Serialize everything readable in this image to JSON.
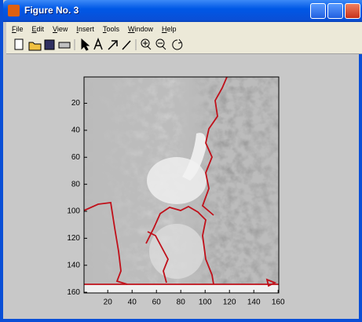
{
  "window": {
    "title": "Figure No. 3"
  },
  "menu": [
    "File",
    "Edit",
    "View",
    "Insert",
    "Tools",
    "Window",
    "Help"
  ],
  "axes": {
    "xlim": [
      0.5,
      160.5
    ],
    "ylim": [
      0.5,
      160.5
    ],
    "xticks": [
      20,
      40,
      60,
      80,
      100,
      120,
      140,
      160
    ],
    "yticks": [
      20,
      40,
      60,
      80,
      100,
      120,
      140,
      160
    ]
  }
}
